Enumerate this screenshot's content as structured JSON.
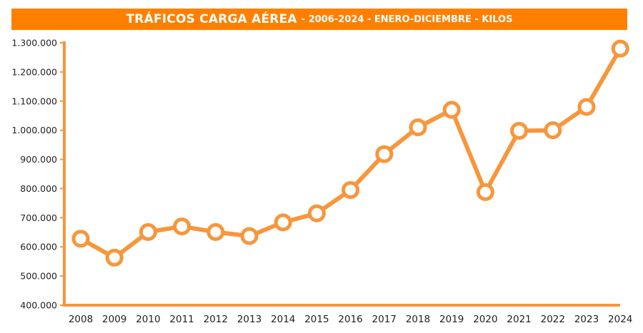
{
  "header": {
    "title": "TRÁFICOS CARGA AÉREA",
    "subtitle": "- 2006-2024 - ENERO-DICIEMBRE - KILOS"
  },
  "colors": {
    "accent": "#ff7f00",
    "line": "#f7963b",
    "axis": "#f7963b",
    "marker_fill": "#ffffff"
  },
  "chart_data": {
    "type": "line",
    "title": "TRÁFICOS CARGA AÉREA - 2006-2024 - ENERO-DICIEMBRE - KILOS",
    "xlabel": "",
    "ylabel": "",
    "categories": [
      "2008",
      "2009",
      "2010",
      "2011",
      "2012",
      "2013",
      "2014",
      "2015",
      "2016",
      "2017",
      "2018",
      "2019",
      "2020",
      "2021",
      "2022",
      "2023",
      "2024"
    ],
    "series": [
      {
        "values": [
          628000,
          563000,
          651000,
          670000,
          651000,
          637000,
          684000,
          715000,
          795000,
          918000,
          1010000,
          1070000,
          788000,
          998000,
          1000000,
          1080000,
          1280000
        ]
      }
    ],
    "ylim": [
      400000,
      1300000
    ],
    "y_ticks": [
      400000,
      500000,
      600000,
      700000,
      800000,
      900000,
      1000000,
      1100000,
      1200000,
      1300000
    ],
    "y_tick_labels": [
      "400.000",
      "500.000",
      "600.000",
      "700.000",
      "800.000",
      "900.000",
      "1.000.000",
      "1.100.000",
      "1.200.000",
      "1.300.000"
    ],
    "grid": false,
    "legend": "none"
  }
}
